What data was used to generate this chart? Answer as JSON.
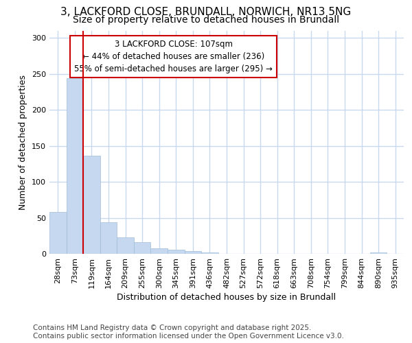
{
  "title_line1": "3, LACKFORD CLOSE, BRUNDALL, NORWICH, NR13 5NG",
  "title_line2": "Size of property relative to detached houses in Brundall",
  "categories": [
    "28sqm",
    "73sqm",
    "119sqm",
    "164sqm",
    "209sqm",
    "255sqm",
    "300sqm",
    "345sqm",
    "391sqm",
    "436sqm",
    "482sqm",
    "527sqm",
    "572sqm",
    "618sqm",
    "663sqm",
    "708sqm",
    "754sqm",
    "799sqm",
    "844sqm",
    "890sqm",
    "935sqm"
  ],
  "values": [
    58,
    244,
    136,
    44,
    23,
    16,
    8,
    6,
    4,
    2,
    0,
    0,
    0,
    0,
    0,
    0,
    0,
    0,
    0,
    2,
    0
  ],
  "bar_color": "#c5d8f0",
  "bar_edge_color": "#a0bcd8",
  "annotation_line1": "3 LACKFORD CLOSE: 107sqm",
  "annotation_line2": "← 44% of detached houses are smaller (236)",
  "annotation_line3": "55% of semi-detached houses are larger (295) →",
  "vline_color": "#cc0000",
  "vline_x": 1.5,
  "xlabel": "Distribution of detached houses by size in Brundall",
  "ylabel": "Number of detached properties",
  "ylim": [
    0,
    310
  ],
  "yticks": [
    0,
    50,
    100,
    150,
    200,
    250,
    300
  ],
  "footnote_line1": "Contains HM Land Registry data © Crown copyright and database right 2025.",
  "footnote_line2": "Contains public sector information licensed under the Open Government Licence v3.0.",
  "bg_color": "#ffffff",
  "plot_bg_color": "#ffffff",
  "grid_color": "#c8d8ee",
  "annotation_box_edgecolor": "#cc0000",
  "title_fontsize": 11,
  "subtitle_fontsize": 10,
  "axis_label_fontsize": 9,
  "tick_fontsize": 8,
  "annotation_fontsize": 8.5,
  "footnote_fontsize": 7.5
}
